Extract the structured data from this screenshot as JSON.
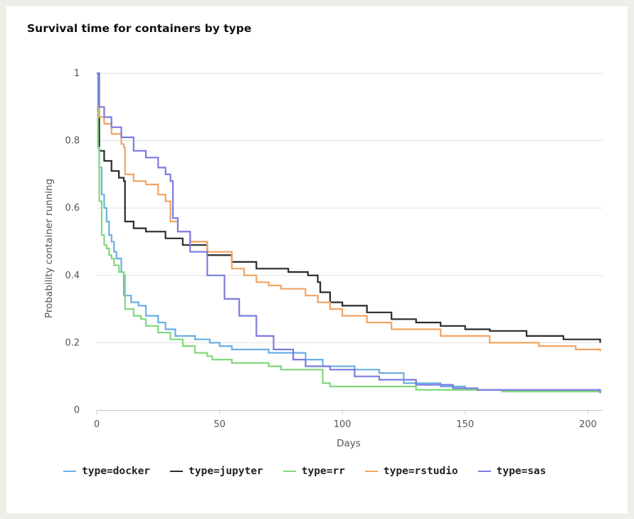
{
  "chart_data": {
    "type": "line",
    "title": "Survival time for containers by type",
    "xlabel": "Days",
    "ylabel": "Probability container running",
    "xlim": [
      0,
      206
    ],
    "ylim": [
      0,
      1
    ],
    "x_ticks": [
      0,
      50,
      100,
      150,
      200
    ],
    "y_ticks": [
      0,
      0.2,
      0.4,
      0.6,
      0.8,
      1
    ],
    "y_tick_labels": [
      "0",
      "0.2",
      "0.4",
      "0.6",
      "0.8",
      "1"
    ],
    "grid": "horizontal",
    "legend_position": "bottom",
    "series": [
      {
        "name": "type=docker",
        "color": "#6aaee3",
        "points": [
          [
            0,
            1
          ],
          [
            0.5,
            0.85
          ],
          [
            1,
            0.72
          ],
          [
            2,
            0.64
          ],
          [
            3,
            0.6
          ],
          [
            4,
            0.56
          ],
          [
            5,
            0.52
          ],
          [
            6,
            0.5
          ],
          [
            7,
            0.47
          ],
          [
            8,
            0.45
          ],
          [
            10,
            0.41
          ],
          [
            11,
            0.34
          ],
          [
            14,
            0.32
          ],
          [
            17,
            0.31
          ],
          [
            20,
            0.28
          ],
          [
            25,
            0.26
          ],
          [
            28,
            0.24
          ],
          [
            32,
            0.22
          ],
          [
            40,
            0.21
          ],
          [
            46,
            0.2
          ],
          [
            50,
            0.19
          ],
          [
            55,
            0.18
          ],
          [
            70,
            0.17
          ],
          [
            85,
            0.15
          ],
          [
            92,
            0.13
          ],
          [
            105,
            0.12
          ],
          [
            115,
            0.11
          ],
          [
            125,
            0.08
          ],
          [
            140,
            0.07
          ],
          [
            150,
            0.06
          ],
          [
            205,
            0.058
          ]
        ]
      },
      {
        "name": "type=jupyter",
        "color": "#2a2a2a",
        "points": [
          [
            0,
            1
          ],
          [
            1,
            0.77
          ],
          [
            3,
            0.74
          ],
          [
            6,
            0.71
          ],
          [
            9,
            0.69
          ],
          [
            11,
            0.68
          ],
          [
            11.5,
            0.56
          ],
          [
            15,
            0.54
          ],
          [
            20,
            0.53
          ],
          [
            28,
            0.51
          ],
          [
            35,
            0.49
          ],
          [
            45,
            0.46
          ],
          [
            55,
            0.44
          ],
          [
            65,
            0.42
          ],
          [
            78,
            0.41
          ],
          [
            86,
            0.4
          ],
          [
            90,
            0.38
          ],
          [
            91,
            0.35
          ],
          [
            95,
            0.32
          ],
          [
            100,
            0.31
          ],
          [
            110,
            0.29
          ],
          [
            120,
            0.27
          ],
          [
            130,
            0.26
          ],
          [
            140,
            0.25
          ],
          [
            150,
            0.24
          ],
          [
            160,
            0.235
          ],
          [
            170,
            0.235
          ],
          [
            175,
            0.22
          ],
          [
            190,
            0.21
          ],
          [
            205,
            0.2
          ]
        ]
      },
      {
        "name": "type=rr",
        "color": "#7fd87a",
        "points": [
          [
            0,
            0.89
          ],
          [
            0.5,
            0.78
          ],
          [
            1,
            0.62
          ],
          [
            2,
            0.52
          ],
          [
            3,
            0.49
          ],
          [
            4,
            0.48
          ],
          [
            5,
            0.46
          ],
          [
            6,
            0.45
          ],
          [
            7,
            0.43
          ],
          [
            9,
            0.41
          ],
          [
            11,
            0.4
          ],
          [
            11.5,
            0.3
          ],
          [
            15,
            0.28
          ],
          [
            18,
            0.27
          ],
          [
            20,
            0.25
          ],
          [
            25,
            0.23
          ],
          [
            30,
            0.21
          ],
          [
            35,
            0.19
          ],
          [
            40,
            0.17
          ],
          [
            45,
            0.16
          ],
          [
            47,
            0.15
          ],
          [
            55,
            0.14
          ],
          [
            65,
            0.14
          ],
          [
            70,
            0.13
          ],
          [
            75,
            0.12
          ],
          [
            90,
            0.12
          ],
          [
            92,
            0.08
          ],
          [
            95,
            0.07
          ],
          [
            105,
            0.07
          ],
          [
            120,
            0.07
          ],
          [
            130,
            0.06
          ],
          [
            165,
            0.055
          ],
          [
            205,
            0.052
          ]
        ]
      },
      {
        "name": "type=rstudio",
        "color": "#f2a463",
        "points": [
          [
            0,
            0.9
          ],
          [
            1,
            0.87
          ],
          [
            3,
            0.85
          ],
          [
            6,
            0.82
          ],
          [
            10,
            0.79
          ],
          [
            11,
            0.78
          ],
          [
            11.5,
            0.7
          ],
          [
            15,
            0.68
          ],
          [
            20,
            0.67
          ],
          [
            25,
            0.64
          ],
          [
            28,
            0.62
          ],
          [
            30,
            0.56
          ],
          [
            33,
            0.53
          ],
          [
            38,
            0.5
          ],
          [
            45,
            0.47
          ],
          [
            55,
            0.42
          ],
          [
            60,
            0.4
          ],
          [
            65,
            0.38
          ],
          [
            70,
            0.37
          ],
          [
            75,
            0.36
          ],
          [
            85,
            0.34
          ],
          [
            90,
            0.32
          ],
          [
            95,
            0.3
          ],
          [
            100,
            0.28
          ],
          [
            110,
            0.26
          ],
          [
            120,
            0.24
          ],
          [
            140,
            0.22
          ],
          [
            160,
            0.2
          ],
          [
            180,
            0.19
          ],
          [
            195,
            0.18
          ],
          [
            205,
            0.175
          ]
        ]
      },
      {
        "name": "type=sas",
        "color": "#7b7be0",
        "points": [
          [
            0,
            1
          ],
          [
            1,
            0.9
          ],
          [
            3,
            0.87
          ],
          [
            6,
            0.84
          ],
          [
            10,
            0.81
          ],
          [
            15,
            0.77
          ],
          [
            20,
            0.75
          ],
          [
            25,
            0.72
          ],
          [
            28,
            0.7
          ],
          [
            30,
            0.68
          ],
          [
            31,
            0.57
          ],
          [
            33,
            0.53
          ],
          [
            38,
            0.47
          ],
          [
            45,
            0.4
          ],
          [
            52,
            0.33
          ],
          [
            58,
            0.28
          ],
          [
            65,
            0.22
          ],
          [
            72,
            0.18
          ],
          [
            80,
            0.15
          ],
          [
            85,
            0.13
          ],
          [
            95,
            0.12
          ],
          [
            105,
            0.1
          ],
          [
            115,
            0.09
          ],
          [
            130,
            0.075
          ],
          [
            145,
            0.065
          ],
          [
            155,
            0.06
          ],
          [
            205,
            0.05
          ]
        ]
      }
    ]
  }
}
